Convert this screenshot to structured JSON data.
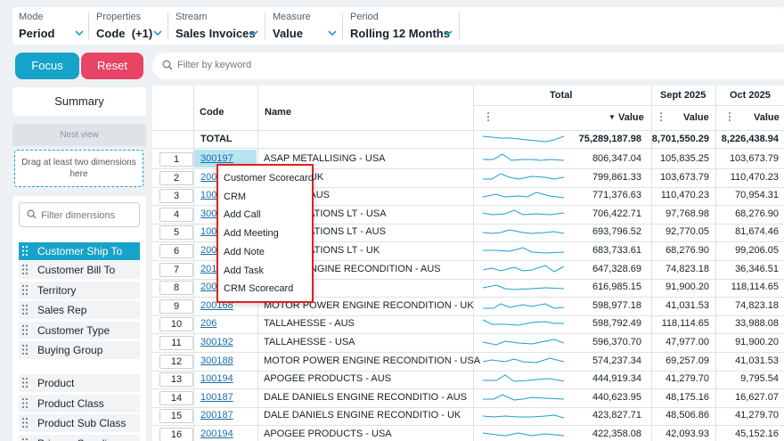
{
  "filters": [
    {
      "label": "Mode",
      "value": "Period"
    },
    {
      "label": "Properties",
      "value": "Code  (+1)"
    },
    {
      "label": "Stream",
      "value": "Sales Invoices"
    },
    {
      "label": "Measure",
      "value": "Value"
    },
    {
      "label": "Period",
      "value": "Rolling 12 Months"
    }
  ],
  "actions": {
    "focus": "Focus",
    "reset": "Reset"
  },
  "search": {
    "placeholder": "Filter by keyword"
  },
  "sidebar": {
    "summary": "Summary",
    "nest_view": "Nest view",
    "dropzone": "Drag at least two dimensions here",
    "filter_placeholder": "Filter dimensions",
    "dimensions": [
      "Customer Ship To",
      "Customer Bill To",
      "Territory",
      "Sales Rep",
      "Customer Type",
      "Buying Group",
      "Product",
      "Product Class",
      "Product Sub Class",
      "Primary Supplier"
    ]
  },
  "grid": {
    "headers": {
      "code": "Code",
      "name": "Name",
      "total": "Total",
      "sept": "Sept 2025",
      "oct": "Oct 2025",
      "value": "Value"
    },
    "total_row": {
      "label": "TOTAL",
      "total": "75,289,187.98",
      "sept": "8,701,550.29",
      "oct": "8,226,438.94"
    },
    "rows": [
      {
        "n": "1",
        "code": "300197",
        "name": "ASAP METALLISING - USA",
        "total": "806,347.04",
        "sept": "105,835.25",
        "oct": "103,673.79"
      },
      {
        "n": "2",
        "code": "200",
        "name": "LLISING - UK",
        "total": "799,861.33",
        "sept": "103,673.79",
        "oct": "110,470.23"
      },
      {
        "n": "3",
        "code": "100",
        "name": "LLISING - AUS",
        "total": "771,376.63",
        "sept": "110,470.23",
        "oct": "70,954.31"
      },
      {
        "n": "4",
        "code": "300",
        "name": "E FABRICATIONS LT - USA",
        "total": "706,422.71",
        "sept": "97,768.98",
        "oct": "68,276.90"
      },
      {
        "n": "5",
        "code": "100",
        "name": "E FABRICATIONS LT - AUS",
        "total": "693,796.52",
        "sept": "92,770.05",
        "oct": "81,674.46"
      },
      {
        "n": "6",
        "code": "200",
        "name": "E FABRICATIONS LT - UK",
        "total": "683,733.61",
        "sept": "68,276.90",
        "oct": "99,206.05"
      },
      {
        "n": "7",
        "code": "201",
        "name": "POWER ENGINE RECONDITION - AUS",
        "total": "647,328.69",
        "sept": "74,823.18",
        "oct": "36,346.51"
      },
      {
        "n": "8",
        "code": "200",
        "name": "E - UK",
        "total": "616,985.15",
        "sept": "91,900.20",
        "oct": "118,114.65"
      },
      {
        "n": "9",
        "code": "200168",
        "name": "MOTOR POWER ENGINE RECONDITION - UK",
        "total": "598,977.18",
        "sept": "41,031.53",
        "oct": "74,823.18"
      },
      {
        "n": "10",
        "code": "206",
        "name": "TALLAHESSE - AUS",
        "total": "598,792.49",
        "sept": "118,114.65",
        "oct": "33,988.08"
      },
      {
        "n": "11",
        "code": "300192",
        "name": "TALLAHESSE - USA",
        "total": "596,370.70",
        "sept": "47,977.00",
        "oct": "91,900.20"
      },
      {
        "n": "12",
        "code": "300188",
        "name": "MOTOR POWER ENGINE RECONDITION - USA",
        "total": "574,237.34",
        "sept": "69,257.09",
        "oct": "41,031.53"
      },
      {
        "n": "13",
        "code": "100194",
        "name": "APOGEE PRODUCTS - AUS",
        "total": "444,919.34",
        "sept": "41,279.70",
        "oct": "9,795.54"
      },
      {
        "n": "14",
        "code": "100187",
        "name": "DALE DANIELS ENGINE RECONDITIO - AUS",
        "total": "440,623.95",
        "sept": "48,175.16",
        "oct": "16,627.07"
      },
      {
        "n": "15",
        "code": "200187",
        "name": "DALE DANIELS ENGINE RECONDITIO - UK",
        "total": "423,827.71",
        "sept": "48,506.86",
        "oct": "41,279.70"
      },
      {
        "n": "16",
        "code": "200194",
        "name": "APOGEE PRODUCTS - USA",
        "total": "422,358.08",
        "sept": "42,093.93",
        "oct": "45,152.16"
      }
    ]
  },
  "context_menu": [
    "Customer Scorecard",
    "CRM",
    "Add Call",
    "Add Meeting",
    "Add Note",
    "Add Task",
    "CRM Scorecard"
  ],
  "colors": {
    "accent": "#17a3c8",
    "reset": "#e84466",
    "link": "#1a6ea8",
    "highlight": "#e02020"
  }
}
